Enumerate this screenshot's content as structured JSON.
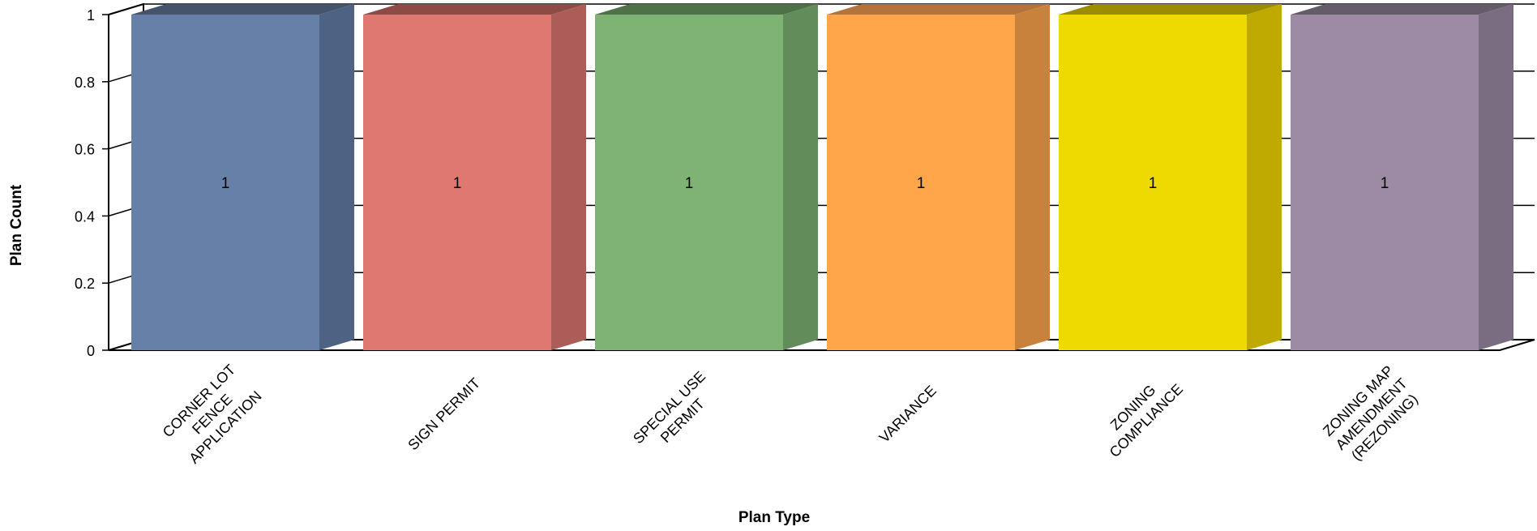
{
  "chart_data": {
    "type": "bar",
    "title": "",
    "xlabel": "Plan Type",
    "ylabel": "Plan Count",
    "ylim": [
      0,
      1
    ],
    "yticks": [
      "0",
      "0.2",
      "0.4",
      "0.6",
      "0.8",
      "1"
    ],
    "grid": true,
    "legend": "none",
    "categories": [
      "CORNER LOT FENCE APPLICATION",
      "SIGN PERMIT",
      "SPECIAL USE PERMIT",
      "VARIANCE",
      "ZONING COMPLIANCE",
      "ZONING MAP AMENDMENT (REZONING)"
    ],
    "category_lines": [
      [
        "CORNER LOT",
        "FENCE",
        "APPLICATION"
      ],
      [
        "SIGN PERMIT"
      ],
      [
        "SPECIAL USE",
        "PERMIT"
      ],
      [
        "VARIANCE"
      ],
      [
        "ZONING",
        "COMPLIANCE"
      ],
      [
        "ZONING MAP",
        "AMENDMENT",
        "(REZONING)"
      ]
    ],
    "values": [
      1,
      1,
      1,
      1,
      1,
      1
    ],
    "data_labels": [
      "1",
      "1",
      "1",
      "1",
      "1",
      "1"
    ],
    "colors": [
      "#6680A8",
      "#E07872",
      "#7EB374",
      "#FFA54A",
      "#EED900",
      "#9D8BA5"
    ],
    "colors_top": [
      "#46546B",
      "#8E4A47",
      "#4F7147",
      "#B4733A",
      "#9B8C00",
      "#655C6A"
    ],
    "colors_side": [
      "#4E6383",
      "#AD5D58",
      "#628D5A",
      "#C8823C",
      "#BEAA00",
      "#7A6C81"
    ]
  }
}
